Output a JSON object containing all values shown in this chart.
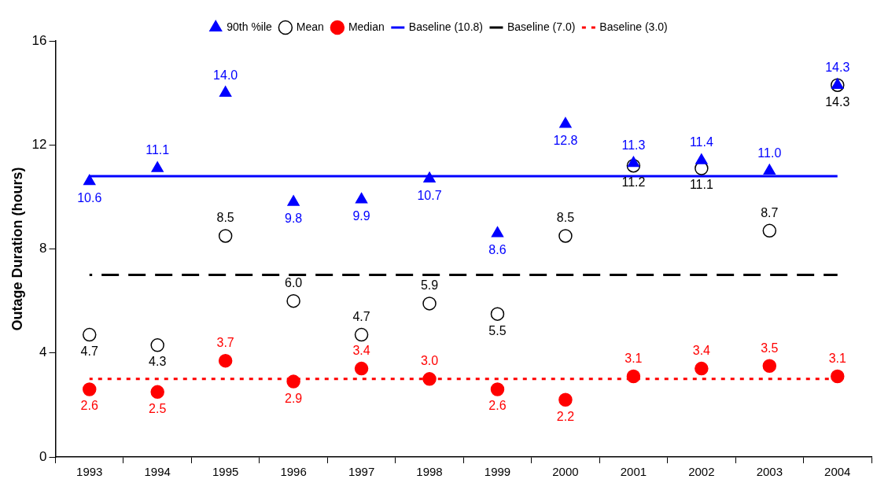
{
  "chart_data": {
    "type": "scatter",
    "ylabel": "Outage Duration (hours)",
    "categories": [
      "1993",
      "1994",
      "1995",
      "1996",
      "1997",
      "1998",
      "1999",
      "2000",
      "2001",
      "2002",
      "2003",
      "2004"
    ],
    "ylim": [
      0,
      16
    ],
    "yticks": [
      0,
      4,
      8,
      12,
      16
    ],
    "grid": false,
    "legend": "top",
    "series": [
      {
        "name": "90th %ile",
        "marker": "triangle",
        "color": "#0000ff",
        "values": [
          10.6,
          11.1,
          14.0,
          9.8,
          9.9,
          10.7,
          8.6,
          12.8,
          11.3,
          11.4,
          11.0,
          14.3
        ],
        "value_labels": [
          "10.6",
          "11.1",
          "14.0",
          "9.8",
          "9.9",
          "10.7",
          "8.6",
          "12.8",
          "11.3",
          "11.4",
          "11.0",
          "14.3"
        ]
      },
      {
        "name": "Mean",
        "marker": "circle",
        "color": "#000000",
        "values": [
          4.7,
          4.3,
          8.5,
          6.0,
          4.7,
          5.9,
          5.5,
          8.5,
          11.2,
          11.1,
          8.7,
          14.3
        ],
        "value_labels": [
          "4.7",
          "4.3",
          "8.5",
          "6.0",
          "4.7",
          "5.9",
          "5.5",
          "8.5",
          "11.2",
          "11.1",
          "8.7",
          "14.3"
        ]
      },
      {
        "name": "Median",
        "marker": "circle",
        "color": "#ff0000",
        "values": [
          2.6,
          2.5,
          3.7,
          2.9,
          3.4,
          3.0,
          2.6,
          2.2,
          3.1,
          3.4,
          3.5,
          3.1
        ],
        "value_labels": [
          "2.6",
          "2.5",
          "3.7",
          "2.9",
          "3.4",
          "3.0",
          "2.6",
          "2.2",
          "3.1",
          "3.4",
          "3.5",
          "3.1"
        ]
      },
      {
        "name": "Baseline (10.8)",
        "type": "line",
        "marker": "none",
        "line_style": "solid",
        "color": "#0000ff",
        "values": [
          10.8,
          10.8,
          10.8,
          10.8,
          10.8,
          10.8,
          10.8,
          10.8,
          10.8,
          10.8,
          10.8,
          10.8
        ]
      },
      {
        "name": "Baseline (7.0)",
        "type": "line",
        "marker": "none",
        "line_style": "dashed",
        "color": "#000000",
        "values": [
          7.0,
          7.0,
          7.0,
          7.0,
          7.0,
          7.0,
          7.0,
          7.0,
          7.0,
          7.0,
          7.0,
          7.0
        ]
      },
      {
        "name": "Baseline (3.0)",
        "type": "line",
        "marker": "none",
        "line_style": "dotted",
        "color": "#ff0000",
        "values": [
          3.0,
          3.0,
          3.0,
          3.0,
          3.0,
          3.0,
          3.0,
          3.0,
          3.0,
          3.0,
          3.0,
          3.0
        ]
      }
    ]
  }
}
